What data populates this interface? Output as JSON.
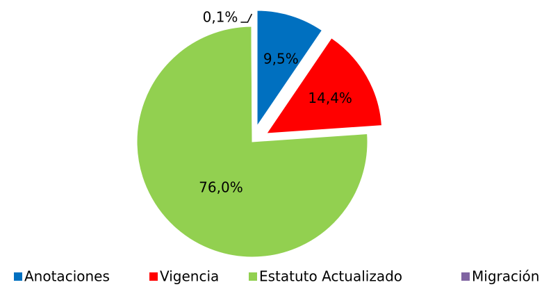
{
  "chart_data": {
    "type": "pie",
    "categories": [
      "Anotaciones",
      "Vigencia",
      "Estatuto Actualizado",
      "Migración"
    ],
    "values": [
      9.5,
      14.4,
      76.0,
      0.1
    ],
    "value_labels": [
      "9,5%",
      "14,4%",
      "76,0%",
      "0,1%"
    ],
    "colors": [
      "#0070c0",
      "#ff0000",
      "#92d050",
      "#8064a2"
    ],
    "legend": "bottom"
  }
}
